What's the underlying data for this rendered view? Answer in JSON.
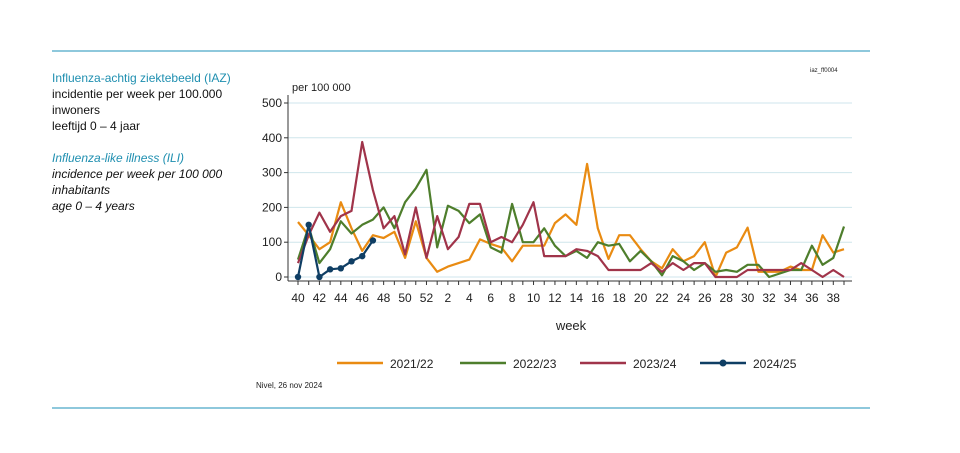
{
  "sidebar": {
    "nl_title": "Influenza-achtig ziektebeeld (IAZ)",
    "nl_line1": "incidentie per week per 100.000",
    "nl_line2": "inwoners",
    "nl_line3": "leeftijd 0 – 4 jaar",
    "en_title": "Influenza-like illness (ILI)",
    "en_line1": "incidence per week per 100 000",
    "en_line2": "inhabitants",
    "en_line3": "age 0 – 4 years"
  },
  "chart_id": "iaz_ff0004",
  "credit": "Nivel, 26 nov 2024",
  "colors": {
    "s2122": "#e98b12",
    "s2223": "#4e7e2c",
    "s2324": "#a0344a",
    "s2425": "#0f3e64",
    "grid": "#cfe6ec"
  },
  "chart_data": {
    "type": "line",
    "title": "",
    "ylabel": "per 100 000",
    "xlabel": "week",
    "ylim": [
      0,
      500
    ],
    "yticks": [
      0,
      100,
      200,
      300,
      400,
      500
    ],
    "grid": true,
    "legend_position": "bottom",
    "weeks": [
      40,
      41,
      42,
      43,
      44,
      45,
      46,
      47,
      48,
      49,
      50,
      51,
      52,
      1,
      2,
      3,
      4,
      5,
      6,
      7,
      8,
      9,
      10,
      11,
      12,
      13,
      14,
      15,
      16,
      17,
      18,
      19,
      20,
      21,
      22,
      23,
      24,
      25,
      26,
      27,
      28,
      29,
      30,
      31,
      32,
      33,
      34,
      35,
      36,
      37,
      38,
      39
    ],
    "xtick_labels": [
      "40",
      "42",
      "44",
      "46",
      "48",
      "50",
      "52",
      "2",
      "4",
      "6",
      "8",
      "10",
      "12",
      "14",
      "16",
      "18",
      "20",
      "22",
      "24",
      "26",
      "28",
      "30",
      "32",
      "34",
      "36",
      "38"
    ],
    "series": [
      {
        "name": "2021/22",
        "color_key": "s2122",
        "values": [
          158,
          120,
          80,
          100,
          215,
          140,
          75,
          120,
          112,
          130,
          55,
          160,
          55,
          15,
          30,
          40,
          50,
          108,
          95,
          85,
          45,
          90,
          90,
          90,
          155,
          180,
          150,
          325,
          140,
          52,
          120,
          120,
          80,
          45,
          25,
          80,
          45,
          60,
          100,
          0,
          70,
          85,
          142,
          15,
          15,
          15,
          30,
          20,
          20,
          120,
          70,
          80
        ]
      },
      {
        "name": "2022/23",
        "color_key": "s2223",
        "values": [
          50,
          145,
          40,
          80,
          160,
          125,
          150,
          165,
          200,
          140,
          215,
          255,
          308,
          85,
          205,
          190,
          155,
          180,
          85,
          70,
          210,
          100,
          100,
          140,
          90,
          60,
          75,
          55,
          100,
          90,
          95,
          45,
          75,
          45,
          5,
          60,
          45,
          20,
          40,
          15,
          20,
          15,
          35,
          35,
          0,
          10,
          20,
          20,
          90,
          35,
          55,
          145
        ]
      },
      {
        "name": "2023/24",
        "color_key": "s2324",
        "values": [
          40,
          120,
          185,
          130,
          175,
          190,
          388,
          250,
          140,
          175,
          65,
          200,
          55,
          175,
          80,
          115,
          210,
          210,
          100,
          115,
          100,
          150,
          215,
          60,
          60,
          60,
          80,
          75,
          60,
          20,
          20,
          20,
          20,
          40,
          15,
          40,
          20,
          40,
          40,
          0,
          0,
          0,
          20,
          20,
          20,
          20,
          20,
          40,
          20,
          0,
          20,
          0
        ]
      },
      {
        "name": "2024/25",
        "color_key": "s2425",
        "values": [
          0,
          150,
          0,
          22,
          25,
          45,
          60,
          105
        ]
      }
    ]
  }
}
